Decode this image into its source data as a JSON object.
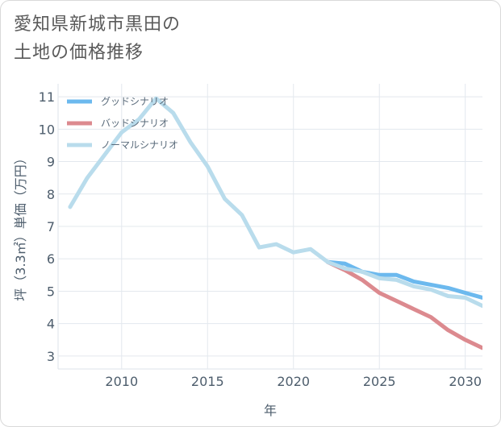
{
  "title_lines": [
    "愛知県新城市黒田の",
    "土地の価格推移"
  ],
  "chart_data": {
    "type": "line",
    "xlabel": "年",
    "ylabel": "坪（3.3㎡）単価（万円）",
    "xlim": [
      2006.3,
      2031
    ],
    "ylim": [
      2.6,
      11.4
    ],
    "x_ticks": [
      2010,
      2015,
      2020,
      2025,
      2030
    ],
    "y_ticks": [
      3,
      4,
      5,
      6,
      7,
      8,
      9,
      10,
      11
    ],
    "grid": true,
    "legend_position": "top-left",
    "series": [
      {
        "name": "グッドシナリオ",
        "color": "#6cb9ee",
        "x": [
          2022,
          2023,
          2024,
          2025,
          2026,
          2027,
          2028,
          2029,
          2030,
          2031
        ],
        "y": [
          5.9,
          5.85,
          5.6,
          5.5,
          5.5,
          5.3,
          5.2,
          5.1,
          4.95,
          4.8
        ]
      },
      {
        "name": "バッドシナリオ",
        "color": "#dc8a8f",
        "x": [
          2022,
          2023,
          2024,
          2025,
          2026,
          2027,
          2028,
          2029,
          2030,
          2031
        ],
        "y": [
          5.9,
          5.65,
          5.35,
          4.95,
          4.7,
          4.45,
          4.2,
          3.8,
          3.5,
          3.25
        ]
      },
      {
        "name": "ノーマルシナリオ",
        "color": "#b9dcec",
        "x": [
          2007,
          2008,
          2009,
          2010,
          2011,
          2012,
          2013,
          2014,
          2015,
          2016,
          2017,
          2018,
          2019,
          2020,
          2021,
          2022,
          2023,
          2024,
          2025,
          2026,
          2027,
          2028,
          2029,
          2030,
          2031
        ],
        "y": [
          7.6,
          8.5,
          9.2,
          9.9,
          10.3,
          10.95,
          10.5,
          9.6,
          8.85,
          7.85,
          7.35,
          6.35,
          6.45,
          6.2,
          6.3,
          5.9,
          5.7,
          5.6,
          5.4,
          5.35,
          5.15,
          5.05,
          4.85,
          4.8,
          4.55
        ]
      }
    ]
  }
}
